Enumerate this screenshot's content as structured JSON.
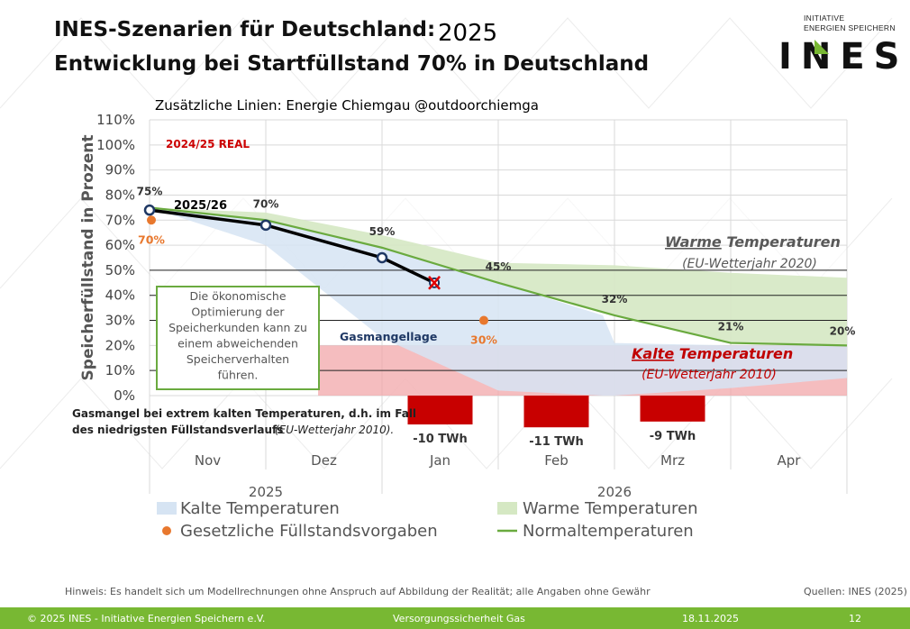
{
  "header": {
    "title_line1": "INES-Szenarien für Deutschland:",
    "year": "2025",
    "title_line2": "Entwicklung bei Startfüllstand 70% in Deutschland",
    "logo_line1": "INITIATIVE",
    "logo_line2": "ENERGIEN SPEICHERN",
    "logo_word": "INES",
    "extra_lines_note": "Zusätzliche Linien: Energie Chiemgau @outdoorchiemga"
  },
  "chart_data": {
    "type": "line",
    "ylabel": "Speicherfüllstand in Prozent",
    "ylim": [
      0,
      110
    ],
    "yticks": [
      "0%",
      "10%",
      "20%",
      "30%",
      "40%",
      "50%",
      "60%",
      "70%",
      "80%",
      "90%",
      "100%",
      "110%"
    ],
    "categories": [
      "Nov",
      "Dez",
      "Jan",
      "Feb",
      "Mrz",
      "Apr"
    ],
    "year_groups": [
      {
        "label": "2025",
        "categories": [
          "Nov",
          "Dez"
        ]
      },
      {
        "label": "2026",
        "categories": [
          "Jan",
          "Feb",
          "Mrz",
          "Apr"
        ]
      }
    ],
    "x_domain": [
      0,
      6
    ],
    "normal_line": {
      "name": "Normaltemperaturen",
      "x": [
        0,
        1,
        2,
        3,
        4,
        5,
        6
      ],
      "y": [
        75,
        70,
        59,
        45,
        32,
        21,
        20
      ],
      "labels": [
        "75%",
        "70%",
        "59%",
        "45%",
        "32%",
        "21%",
        "20%"
      ]
    },
    "warm_band": {
      "name": "Warme Temperaturen",
      "x": [
        0,
        1,
        2,
        3,
        4,
        5,
        6
      ],
      "lower": [
        75,
        70,
        59,
        45,
        32,
        21,
        20
      ],
      "upper": [
        75,
        73,
        64,
        53,
        52,
        49,
        47
      ]
    },
    "cold_band": {
      "name": "Kalte Temperaturen",
      "x": [
        0,
        1,
        2,
        3,
        3.9,
        4,
        5,
        6
      ],
      "upper": [
        75,
        70,
        59,
        45,
        32,
        21,
        20,
        20
      ],
      "lower": [
        75,
        60,
        23,
        2,
        0,
        0,
        3,
        7
      ]
    },
    "shortage_zone": {
      "label": "Gasmangellage",
      "y_from": 0,
      "y_to": 20
    },
    "deficits": [
      {
        "x": 3,
        "value": -10,
        "label": "-10 TWh"
      },
      {
        "x": 4,
        "value": -11,
        "label": "-11 TWh"
      },
      {
        "x": 5,
        "value": -9,
        "label": "-9 TWh"
      }
    ],
    "real_series": {
      "name": "2025/26",
      "x": [
        0,
        1,
        2,
        2.45
      ],
      "y": [
        74,
        68,
        55,
        45
      ]
    },
    "legal_targets": {
      "name": "Gesetzliche Füllstandsvorgaben",
      "points": [
        {
          "x": 0,
          "y": 70,
          "label": "70%"
        },
        {
          "x": 3,
          "y": 30,
          "label": "30%"
        }
      ]
    },
    "annotations": {
      "real_label": "2024/25 REAL",
      "warm_title_a": "Warme",
      "warm_title_b": " Temperaturen",
      "warm_sub": "(EU-Wetterjahr 2020)",
      "cold_title_a": "Kalte",
      "cold_title_b": " Temperaturen",
      "cold_sub": "(EU-Wetterjahr 2010)",
      "optimization_box": [
        "Die ökonomische",
        "Optimierung der",
        "Speicherkunden kann zu",
        "einem abweichenden",
        "Speicherverhalten",
        "führen."
      ],
      "shortage_note_line1": "Gasmangel bei extrem kalten Temperaturen, d.h. im Fall",
      "shortage_note_line2": "des niedrigsten Füllstandsverlaufs ",
      "shortage_note_line2_italic": "(EU-Wetterjahr 2010)."
    },
    "colors": {
      "warm": "#d5e8c3",
      "cold": "#d6e4f3",
      "normal": "#6aaa3f",
      "shortage": "#f2a7aa",
      "deficit": "#c80000",
      "legal": "#e8782e",
      "real": "#000000",
      "marker": "#1f3864"
    }
  },
  "legend": {
    "cold": "Kalte Temperaturen",
    "warm": "Warme Temperaturen",
    "legal": "Gesetzliche Füllstandsvorgaben",
    "normal": "Normaltemperaturen"
  },
  "footnote": "Hinweis: Es handelt sich um Modellrechnungen ohne Anspruch auf Abbildung der Realität; alle Angaben ohne Gewähr",
  "sources": "Quellen: INES (2025)",
  "footer": {
    "copyright": "© 2025 INES - Initiative Energien Speichern e.V.",
    "topic": "Versorgungssicherheit Gas",
    "date": "18.11.2025",
    "page": "12"
  }
}
